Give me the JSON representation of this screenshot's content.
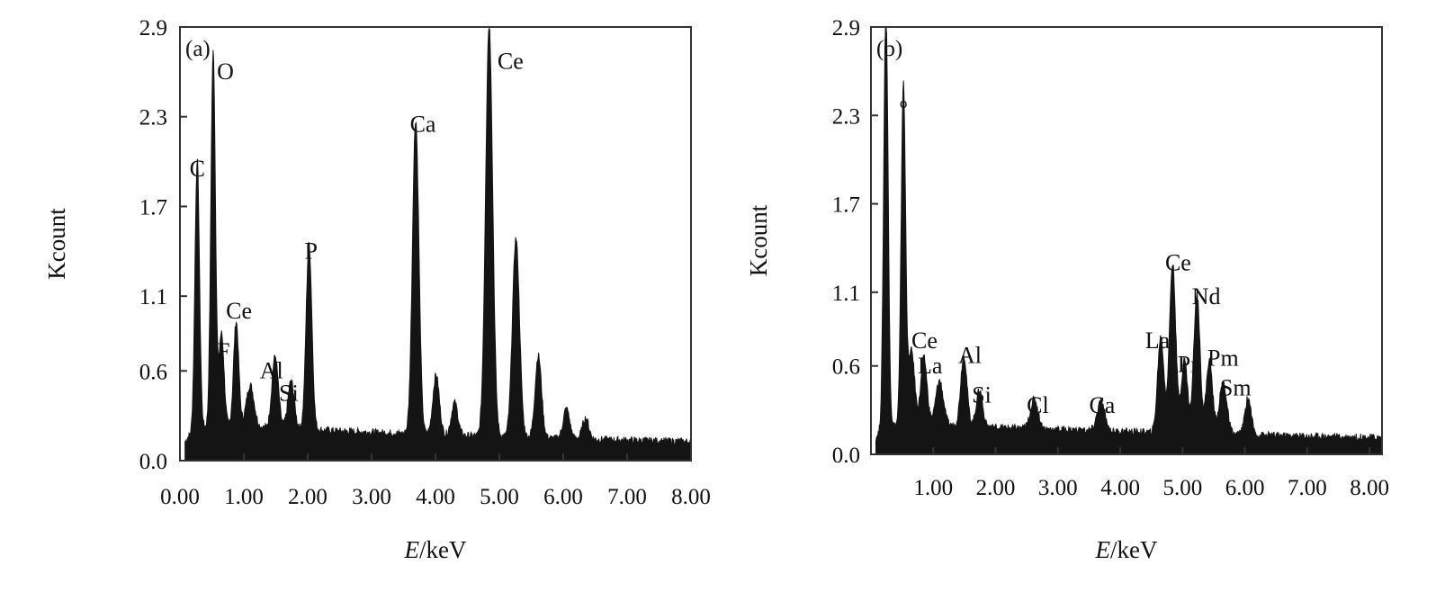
{
  "chart_data": [
    {
      "type": "area",
      "panel_label": "(a)",
      "xlabel": "E/keV",
      "xlabel_italic_part": "E",
      "xlabel_rest": "/keV",
      "ylabel": "Kcount",
      "xlim": [
        0.0,
        8.0
      ],
      "ylim": [
        0.0,
        2.9
      ],
      "xticks": [
        0.0,
        1.0,
        2.0,
        3.0,
        4.0,
        5.0,
        6.0,
        7.0,
        8.0
      ],
      "xtick_labels": [
        "0.00",
        "1.00",
        "2.00",
        "3.00",
        "4.00",
        "5.00",
        "6.00",
        "7.00",
        "8.00"
      ],
      "yticks": [
        0.0,
        0.6,
        1.1,
        1.7,
        2.3,
        2.9
      ],
      "ytick_labels": [
        "0.0",
        "0.6",
        "1.1",
        "1.7",
        "2.3",
        "2.9"
      ],
      "grid": false,
      "background": 0.2,
      "peaks": [
        {
          "x": 0.27,
          "y": 1.8,
          "w": 0.035
        },
        {
          "x": 0.52,
          "y": 2.5,
          "w": 0.035
        },
        {
          "x": 0.65,
          "y": 0.62,
          "w": 0.04
        },
        {
          "x": 0.88,
          "y": 0.7,
          "w": 0.04
        },
        {
          "x": 1.1,
          "y": 0.28,
          "w": 0.06
        },
        {
          "x": 1.49,
          "y": 0.48,
          "w": 0.05
        },
        {
          "x": 1.74,
          "y": 0.32,
          "w": 0.05
        },
        {
          "x": 2.02,
          "y": 1.24,
          "w": 0.045
        },
        {
          "x": 3.69,
          "y": 2.1,
          "w": 0.05
        },
        {
          "x": 4.01,
          "y": 0.4,
          "w": 0.05
        },
        {
          "x": 4.3,
          "y": 0.22,
          "w": 0.05
        },
        {
          "x": 4.84,
          "y": 2.75,
          "w": 0.055
        },
        {
          "x": 5.26,
          "y": 1.33,
          "w": 0.055
        },
        {
          "x": 5.61,
          "y": 0.55,
          "w": 0.05
        },
        {
          "x": 6.05,
          "y": 0.2,
          "w": 0.05
        },
        {
          "x": 6.35,
          "y": 0.14,
          "w": 0.05
        }
      ],
      "peak_labels": [
        {
          "text": "C",
          "x": 0.15,
          "y": 1.9
        },
        {
          "text": "O",
          "x": 0.58,
          "y": 2.55
        },
        {
          "text": "Ce",
          "x": 0.72,
          "y": 0.95
        },
        {
          "text": "F",
          "x": 0.58,
          "y": 0.68
        },
        {
          "text": "Al",
          "x": 1.25,
          "y": 0.55
        },
        {
          "text": "Si",
          "x": 1.55,
          "y": 0.4
        },
        {
          "text": "P",
          "x": 1.95,
          "y": 1.35
        },
        {
          "text": "Ca",
          "x": 3.6,
          "y": 2.2
        },
        {
          "text": "Ce",
          "x": 4.97,
          "y": 2.62
        }
      ]
    },
    {
      "type": "area",
      "panel_label": "(b)",
      "xlabel": "E/keV",
      "xlabel_italic_part": "E",
      "xlabel_rest": "/keV",
      "ylabel": "Kcount",
      "xlim": [
        0.0,
        8.2
      ],
      "ylim": [
        0.0,
        2.9
      ],
      "xticks": [
        1.0,
        2.0,
        3.0,
        4.0,
        5.0,
        6.0,
        7.0,
        8.0
      ],
      "xtick_labels": [
        "1.00",
        "2.00",
        "3.00",
        "4.00",
        "5.00",
        "6.00",
        "7.00",
        "8.00"
      ],
      "yticks": [
        0.0,
        0.6,
        1.1,
        1.7,
        2.3,
        2.9
      ],
      "ytick_labels": [
        "0.0",
        "0.6",
        "1.1",
        "1.7",
        "2.3",
        "2.9"
      ],
      "grid": false,
      "background": 0.17,
      "peaks": [
        {
          "x": 0.24,
          "y": 2.85,
          "w": 0.035
        },
        {
          "x": 0.52,
          "y": 2.3,
          "w": 0.035
        },
        {
          "x": 0.65,
          "y": 0.5,
          "w": 0.05
        },
        {
          "x": 0.85,
          "y": 0.45,
          "w": 0.05
        },
        {
          "x": 1.1,
          "y": 0.3,
          "w": 0.06
        },
        {
          "x": 1.49,
          "y": 0.48,
          "w": 0.05
        },
        {
          "x": 1.74,
          "y": 0.25,
          "w": 0.05
        },
        {
          "x": 2.62,
          "y": 0.2,
          "w": 0.06
        },
        {
          "x": 3.69,
          "y": 0.2,
          "w": 0.06
        },
        {
          "x": 4.65,
          "y": 0.65,
          "w": 0.05
        },
        {
          "x": 4.84,
          "y": 1.15,
          "w": 0.05
        },
        {
          "x": 5.03,
          "y": 0.5,
          "w": 0.05
        },
        {
          "x": 5.23,
          "y": 0.95,
          "w": 0.05
        },
        {
          "x": 5.43,
          "y": 0.5,
          "w": 0.05
        },
        {
          "x": 5.65,
          "y": 0.35,
          "w": 0.06
        },
        {
          "x": 6.05,
          "y": 0.25,
          "w": 0.05
        }
      ],
      "peak_labels": [
        {
          "text": "o",
          "x": 0.46,
          "y": 2.35
        },
        {
          "text": "Ce",
          "x": 0.65,
          "y": 0.72
        },
        {
          "text": "La",
          "x": 0.75,
          "y": 0.55
        },
        {
          "text": "Al",
          "x": 1.4,
          "y": 0.62
        },
        {
          "text": "Si",
          "x": 1.62,
          "y": 0.35
        },
        {
          "text": "Cl",
          "x": 2.5,
          "y": 0.28
        },
        {
          "text": "Ca",
          "x": 3.5,
          "y": 0.28
        },
        {
          "text": "La",
          "x": 4.4,
          "y": 0.72
        },
        {
          "text": "Ce",
          "x": 4.72,
          "y": 1.25
        },
        {
          "text": "Nd",
          "x": 5.15,
          "y": 1.02
        },
        {
          "text": "Pr",
          "x": 4.92,
          "y": 0.56
        },
        {
          "text": "Pm",
          "x": 5.4,
          "y": 0.6
        },
        {
          "text": "Sm",
          "x": 5.6,
          "y": 0.4
        }
      ]
    }
  ]
}
